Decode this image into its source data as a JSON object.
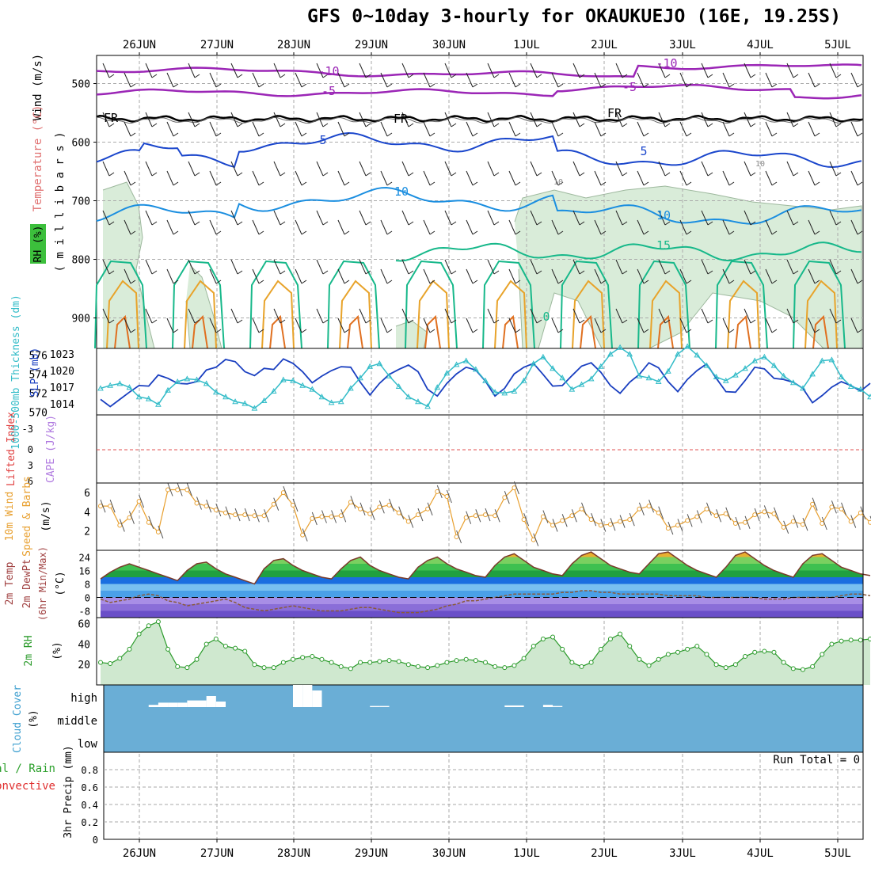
{
  "title": "GFS 0~10day 3-hourly for OKAUKUEJO (16E, 19.25S)",
  "dates": [
    "26JUN",
    "27JUN",
    "28JUN",
    "29JUN",
    "30JUN",
    "1JUL",
    "2JUL",
    "3JUL",
    "4JUL",
    "5JUL"
  ],
  "colors": {
    "purple": "#9b26b6",
    "black": "#000000",
    "blue_dark": "#1a46cc",
    "blue": "#1a8ee0",
    "teal": "#17b88a",
    "orange_light": "#e8a32a",
    "orange": "#e07020",
    "rh_fill": "#d9ecd9",
    "slp": "#1a3fc0",
    "thickness": "#33bcc8",
    "wind10m": "#e8a030",
    "rh2m": "#2a9a2a",
    "cloud": "#6aaed6",
    "cape_line": "#e05050"
  },
  "panels": {
    "upper": {
      "ylabel_wind": "Wind (m/s)",
      "ylabel_temp": "Temperature (°C)",
      "ylabel_rh": "RH (%)",
      "ylabel_mb": "( m i l l i b a r s )",
      "pressure_ticks": [
        "500",
        "600",
        "700",
        "800",
        "900"
      ],
      "pressure_range": [
        452,
        952
      ],
      "contour_labels": [
        "-10",
        "-10",
        "-5",
        "-5",
        "FR",
        "FR",
        "FR",
        "5",
        "5",
        "10",
        "10",
        "10",
        "10",
        "15",
        "0"
      ]
    },
    "slp_thk": {
      "ylabel_thk": "1000-500mb Thickness (dm)",
      "ylabel_slp": "SLP (mb)",
      "thk_ticks": [
        "570",
        "572",
        "574",
        "576"
      ],
      "slp_ticks": [
        "1014",
        "1017",
        "1020",
        "1023"
      ]
    },
    "li_cape": {
      "ylabel_li": "Lifted Index",
      "ylabel_cape": "CAPE (J/kg)",
      "li_ticks": [
        "-3",
        "0",
        "3",
        "6"
      ]
    },
    "wind10m": {
      "ylabel_a": "10m Wind",
      "ylabel_b": "Speed & Barbs",
      "unit": "(m/s)",
      "ticks": [
        "2",
        "4",
        "6"
      ],
      "range": [
        0,
        7
      ]
    },
    "temp2m": {
      "ylabel_a": "2m Temp",
      "ylabel_b": "2m DewPt",
      "ylabel_c": "(6hr Min/Max)",
      "unit": "(°C)",
      "ticks": [
        "-8",
        "0",
        "8",
        "16",
        "24"
      ]
    },
    "rh2m": {
      "ylabel": "2m RH",
      "unit": "(%)",
      "ticks": [
        "20",
        "40",
        "60"
      ]
    },
    "cloud": {
      "ylabel": "Cloud Cover",
      "unit": "(%)",
      "levels": [
        "high",
        "middle",
        "low"
      ]
    },
    "precip": {
      "ylabel_a": "Total / Rain",
      "ylabel_b": "Convective",
      "ylabel_c": "3hr Precip (mm)",
      "ticks": [
        "0",
        "0.2",
        "0.4",
        "0.6",
        "0.8"
      ],
      "run_total": "Run Total = 0"
    }
  },
  "chart_data": [
    {
      "type": "line",
      "name": "slp_thickness",
      "x_unit": "forecast hour",
      "x": [
        0,
        3,
        6,
        9,
        12,
        15,
        18,
        21,
        24,
        27,
        30,
        33,
        36,
        39,
        42,
        45,
        48,
        51,
        54,
        57,
        60,
        63,
        66,
        69,
        72,
        75,
        78,
        81,
        84,
        87,
        90,
        93,
        96,
        99,
        102,
        105,
        108,
        111,
        114,
        117,
        120,
        123,
        126,
        129,
        132,
        135,
        138,
        141,
        144,
        147,
        150,
        153,
        156,
        159,
        162,
        165,
        168,
        171,
        174,
        177,
        180,
        183,
        186,
        189,
        192,
        195,
        198,
        201,
        204,
        207,
        210,
        213,
        216,
        219,
        222,
        225,
        228,
        231,
        234,
        237,
        240
      ],
      "series": [
        {
          "name": "SLP (mb)",
          "values": [
            1014.8,
            1013.5,
            1014.8,
            1016.1,
            1017.3,
            1017.2,
            1019.2,
            1018.6,
            1017.7,
            1017.6,
            1018.0,
            1020.1,
            1020.6,
            1022.0,
            1021.6,
            1019.8,
            1019.1,
            1020.4,
            1020.2,
            1022.1,
            1021.3,
            1019.8,
            1017.8,
            1019.0,
            1020.0,
            1020.7,
            1020.6,
            1017.9,
            1015.6,
            1017.7,
            1019.3,
            1020.2,
            1021.0,
            1019.8,
            1016.6,
            1015.4,
            1017.7,
            1019.4,
            1020.6,
            1020.1,
            1018.1,
            1015.4,
            1016.8,
            1019.4,
            1020.6,
            1021.3,
            1019.3,
            1017.2,
            1017.3,
            1019.1,
            1020.8,
            1021.4,
            1019.7,
            1017.3,
            1015.9,
            1017.9,
            1019.3,
            1021.4,
            1020.5,
            1018.0,
            1016.2,
            1018.4,
            1020.0,
            1021.2,
            1018.6,
            1016.2,
            1016.1,
            1018.2,
            1020.6,
            1020.3,
            1018.6,
            1018.4,
            1017.9,
            1016.8,
            1014.2,
            1015.5,
            1017.0,
            1018.0,
            1017.3,
            1016.3,
            1017.7
          ]
        },
        {
          "name": "1000-500mb Thickness (dm)",
          "values": [
            572.5,
            572.8,
            573.0,
            572.6,
            571.6,
            571.4,
            570.8,
            572.3,
            573.2,
            573.5,
            573.4,
            573.0,
            572.1,
            571.6,
            571.1,
            570.9,
            570.4,
            571.2,
            572.2,
            573.4,
            573.3,
            572.8,
            572.4,
            571.6,
            571.0,
            571.1,
            572.5,
            573.6,
            574.8,
            575.1,
            573.8,
            572.7,
            571.6,
            571.1,
            570.6,
            572.6,
            574.1,
            575.0,
            575.4,
            574.5,
            573.3,
            572.1,
            572.0,
            572.2,
            573.3,
            575.1,
            575.8,
            574.6,
            573.6,
            572.4,
            572.9,
            573.5,
            574.8,
            576.1,
            576.8,
            576.1,
            573.8,
            573.6,
            573.2,
            574.3,
            576.1,
            576.9,
            576.0,
            574.9,
            573.7,
            573.3,
            573.9,
            574.6,
            575.4,
            575.8,
            574.9,
            573.8,
            573.1,
            572.5,
            574.0,
            575.4,
            575.5,
            573.7,
            572.7,
            572.4,
            571.6
          ]
        }
      ],
      "ylim_slp": [
        1012,
        1024
      ],
      "ylim_thickness": [
        570,
        577
      ]
    },
    {
      "type": "line",
      "name": "wind_10m",
      "x_unit": "forecast hour",
      "ylabel": "(m/s)",
      "values": [
        4.6,
        4.6,
        2.6,
        3.4,
        5.1,
        2.9,
        1.9,
        6.3,
        6.3,
        6.3,
        4.9,
        4.6,
        4.2,
        3.9,
        3.7,
        3.7,
        3.6,
        3.6,
        4.8,
        6.0,
        4.7,
        1.6,
        3.3,
        3.5,
        3.5,
        3.6,
        5.0,
        4.3,
        3.8,
        4.5,
        4.7,
        3.9,
        3.0,
        3.7,
        4.3,
        6.1,
        5.6,
        1.4,
        3.4,
        3.6,
        3.7,
        3.6,
        5.5,
        6.5,
        3.2,
        1.1,
        3.5,
        2.6,
        3.1,
        3.6,
        4.3,
        3.2,
        2.6,
        2.7,
        3.0,
        3.2,
        4.3,
        4.6,
        3.9,
        2.3,
        2.6,
        3.1,
        3.5,
        4.3,
        3.6,
        3.8,
        2.8,
        2.9,
        3.7,
        4.0,
        3.8,
        2.4,
        3.0,
        2.7,
        4.8,
        2.8,
        4.5,
        4.3,
        3.0,
        3.9,
        2.9
      ]
    },
    {
      "type": "area",
      "name": "temp_2m",
      "x_unit": "forecast hour",
      "ylabel": "(°C)",
      "series": [
        {
          "name": "2m Temp",
          "values": [
            11,
            15,
            18,
            20,
            18,
            16,
            14,
            12,
            10,
            16,
            20,
            21,
            17,
            14,
            12,
            10,
            8,
            17,
            22,
            23,
            19,
            16,
            14,
            12,
            11,
            17,
            22,
            24,
            19,
            16,
            14,
            12,
            11,
            18,
            22,
            24,
            20,
            17,
            15,
            13,
            12,
            19,
            24,
            26,
            22,
            18,
            16,
            14,
            13,
            20,
            25,
            27,
            23,
            19,
            17,
            15,
            14,
            20,
            26,
            27,
            23,
            19,
            16,
            14,
            12,
            18,
            25,
            27,
            23,
            19,
            16,
            14,
            12,
            20,
            25,
            26,
            22,
            18,
            16,
            14,
            13
          ]
        },
        {
          "name": "2m DewPt",
          "values": [
            -1,
            -3,
            -2,
            -1,
            1,
            2,
            1,
            -2,
            -3,
            -5,
            -4,
            -3,
            -2,
            -1,
            -3,
            -6,
            -7,
            -8,
            -7,
            -6,
            -5,
            -6,
            -7,
            -8,
            -8,
            -8,
            -7,
            -6,
            -6,
            -7,
            -8,
            -9,
            -9,
            -9,
            -8,
            -7,
            -5,
            -4,
            -2,
            -2,
            -1,
            0,
            1,
            2,
            2,
            2,
            2,
            2,
            3,
            3,
            4,
            4,
            3,
            3,
            2,
            2,
            2,
            2,
            2,
            1,
            1,
            1,
            1,
            0,
            0,
            0,
            0,
            0,
            0,
            -1,
            -1,
            -1,
            0,
            0,
            0,
            0,
            0,
            1,
            2,
            2,
            1
          ]
        }
      ],
      "ylim": [
        -12,
        28
      ]
    },
    {
      "type": "area",
      "name": "rh_2m",
      "x_unit": "forecast hour",
      "ylabel": "(%)",
      "values": [
        22,
        21,
        26,
        35,
        50,
        58,
        62,
        35,
        18,
        17,
        25,
        40,
        45,
        38,
        36,
        33,
        20,
        17,
        17,
        22,
        25,
        27,
        28,
        25,
        22,
        18,
        16,
        22,
        22,
        23,
        24,
        23,
        20,
        18,
        17,
        19,
        22,
        24,
        25,
        24,
        22,
        18,
        17,
        19,
        26,
        38,
        45,
        47,
        35,
        22,
        18,
        22,
        35,
        45,
        50,
        38,
        25,
        19,
        25,
        30,
        32,
        35,
        38,
        30,
        20,
        17,
        20,
        28,
        32,
        33,
        32,
        22,
        16,
        15,
        18,
        30,
        40,
        43,
        44,
        44,
        45
      ]
    },
    {
      "type": "bar",
      "name": "cloud_high",
      "x_unit": "forecast hour",
      "x": [
        15,
        18,
        21,
        24,
        27,
        30,
        33,
        36,
        60,
        63,
        66,
        84,
        87,
        126,
        129,
        138,
        141
      ],
      "values": [
        4,
        8,
        8,
        8,
        12,
        12,
        20,
        10,
        40,
        40,
        30,
        2,
        2,
        3,
        3,
        4,
        2
      ]
    },
    {
      "type": "bar",
      "name": "precip_3hr",
      "ylabel": "3hr Precip (mm)",
      "ylim": [
        0,
        1.0
      ],
      "values": []
    }
  ]
}
